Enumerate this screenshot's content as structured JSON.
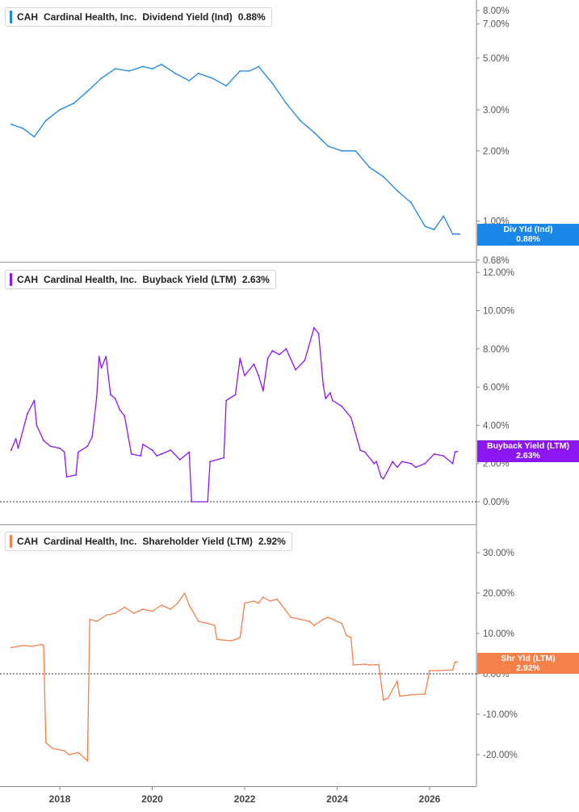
{
  "x_axis": {
    "ticks": [
      "2018",
      "2020",
      "2022",
      "2024",
      "2026"
    ]
  },
  "colors": {
    "dividend": "#1a86e8",
    "buyback": "#8d17f0",
    "shareholder": "#f5814a",
    "axis": "#555555",
    "grid_divider": "#9a9a9a"
  },
  "legends": [
    {
      "ticker": "CAH",
      "company": "Cardinal Health, Inc.",
      "metric": "Dividend Yield (Ind)",
      "value": "0.88%"
    },
    {
      "ticker": "CAH",
      "company": "Cardinal Health, Inc.",
      "metric": "Buyback Yield (LTM)",
      "value": "2.63%"
    },
    {
      "ticker": "CAH",
      "company": "Cardinal Health, Inc.",
      "metric": "Shareholder Yield (LTM)",
      "value": "2.92%"
    }
  ],
  "tags": [
    {
      "line1": "Div Yld (Ind)",
      "line2": "0.88%"
    },
    {
      "line1": "Buyback Yield (LTM)",
      "line2": "2.63%"
    },
    {
      "line1": "Shr Yld (LTM)",
      "line2": "2.92%"
    }
  ],
  "chart_data": [
    {
      "type": "line",
      "title": "CAH Cardinal Health, Inc. Dividend Yield (Ind) 0.88%",
      "y_scale": "log",
      "ylim": [
        0.62,
        9.2
      ],
      "y_ticks": [
        {
          "value": 8.0,
          "label": "8.00%"
        },
        {
          "value": 7.0,
          "label": "7.00%"
        },
        {
          "value": 5.0,
          "label": "5.00%"
        },
        {
          "value": 3.0,
          "label": "3.00%"
        },
        {
          "value": 2.0,
          "label": "2.00%"
        },
        {
          "value": 1.0,
          "label": "1.00%"
        },
        {
          "value": 0.88,
          "label": "0.88%"
        },
        {
          "value": 0.68,
          "label": "0.68%"
        }
      ],
      "series": [
        {
          "name": "Dividend Yield (Ind)",
          "x": [
            2016.95,
            2017.2,
            2017.45,
            2017.7,
            2018.0,
            2018.3,
            2018.6,
            2018.9,
            2019.2,
            2019.5,
            2019.8,
            2020.0,
            2020.2,
            2020.5,
            2020.8,
            2021.0,
            2021.3,
            2021.6,
            2021.9,
            2022.1,
            2022.3,
            2022.6,
            2022.9,
            2023.2,
            2023.5,
            2023.8,
            2024.1,
            2024.4,
            2024.7,
            2025.0,
            2025.3,
            2025.6,
            2025.9,
            2026.1,
            2026.3,
            2026.5,
            2026.65
          ],
          "y": [
            2.6,
            2.5,
            2.3,
            2.7,
            3.0,
            3.2,
            3.6,
            4.1,
            4.5,
            4.4,
            4.6,
            4.5,
            4.7,
            4.3,
            4.0,
            4.3,
            4.1,
            3.8,
            4.4,
            4.4,
            4.6,
            3.9,
            3.2,
            2.7,
            2.4,
            2.1,
            2.0,
            2.0,
            1.7,
            1.55,
            1.35,
            1.2,
            0.95,
            0.92,
            1.05,
            0.88,
            0.88
          ]
        }
      ]
    },
    {
      "type": "line",
      "title": "CAH Cardinal Health, Inc. Buyback Yield (LTM) 2.63%",
      "ylim": [
        -0.5,
        12.4
      ],
      "y_ticks": [
        {
          "value": 12,
          "label": "12.00%"
        },
        {
          "value": 10,
          "label": "10.00%"
        },
        {
          "value": 8,
          "label": "8.00%"
        },
        {
          "value": 6,
          "label": "6.00%"
        },
        {
          "value": 4,
          "label": "4.00%"
        },
        {
          "value": 2,
          "label": "2.00%"
        },
        {
          "value": 0,
          "label": "0.00%"
        }
      ],
      "series": [
        {
          "name": "Buyback Yield (LTM)",
          "x": [
            2016.95,
            2017.05,
            2017.1,
            2017.3,
            2017.45,
            2017.5,
            2017.65,
            2017.8,
            2018.0,
            2018.1,
            2018.15,
            2018.35,
            2018.4,
            2018.6,
            2018.7,
            2018.8,
            2018.85,
            2018.9,
            2019.0,
            2019.1,
            2019.2,
            2019.3,
            2019.4,
            2019.55,
            2019.75,
            2019.8,
            2020.0,
            2020.1,
            2020.2,
            2020.4,
            2020.6,
            2020.8,
            2020.85,
            2021.2,
            2021.25,
            2021.55,
            2021.6,
            2021.8,
            2021.9,
            2022.0,
            2022.2,
            2022.3,
            2022.4,
            2022.5,
            2022.6,
            2022.75,
            2022.9,
            2023.1,
            2023.3,
            2023.5,
            2023.6,
            2023.7,
            2023.75,
            2023.85,
            2023.9,
            2024.1,
            2024.3,
            2024.5,
            2024.6,
            2024.8,
            2024.85,
            2024.95,
            2025.0,
            2025.2,
            2025.3,
            2025.4,
            2025.6,
            2025.7,
            2025.9,
            2026.1,
            2026.3,
            2026.5,
            2026.55,
            2026.6
          ],
          "y": [
            2.7,
            3.3,
            2.8,
            4.6,
            5.3,
            4.0,
            3.2,
            2.9,
            2.8,
            2.6,
            1.3,
            1.4,
            2.6,
            2.9,
            3.4,
            5.5,
            7.6,
            7.0,
            7.6,
            5.6,
            5.4,
            4.8,
            4.5,
            2.5,
            2.4,
            3.0,
            2.7,
            2.4,
            2.5,
            2.7,
            2.2,
            2.6,
            0.0,
            0.0,
            2.1,
            2.3,
            5.3,
            5.6,
            7.5,
            6.6,
            7.2,
            6.6,
            5.8,
            7.5,
            7.9,
            7.7,
            8.0,
            6.9,
            7.4,
            9.1,
            8.8,
            6.1,
            5.4,
            5.7,
            5.3,
            5.0,
            4.4,
            2.7,
            2.6,
            2.0,
            2.1,
            1.3,
            1.2,
            2.1,
            1.8,
            2.1,
            2.0,
            1.8,
            2.0,
            2.5,
            2.4,
            2.0,
            2.6,
            2.63
          ]
        }
      ]
    },
    {
      "type": "line",
      "title": "CAH Cardinal Health, Inc. Shareholder Yield (LTM) 2.92%",
      "ylim": [
        -25,
        35
      ],
      "y_ticks": [
        {
          "value": 30,
          "label": "30.00%"
        },
        {
          "value": 20,
          "label": "20.00%"
        },
        {
          "value": 10,
          "label": "10.00%"
        },
        {
          "value": 0,
          "label": "0.00%"
        },
        {
          "value": -10,
          "label": "-10.00%"
        },
        {
          "value": -20,
          "label": "-20.00%"
        }
      ],
      "series": [
        {
          "name": "Shareholder Yield (LTM)",
          "x": [
            2016.95,
            2017.2,
            2017.4,
            2017.6,
            2017.65,
            2017.7,
            2017.85,
            2018.1,
            2018.2,
            2018.4,
            2018.6,
            2018.65,
            2018.8,
            2019.0,
            2019.2,
            2019.4,
            2019.6,
            2019.8,
            2020.0,
            2020.2,
            2020.4,
            2020.55,
            2020.7,
            2020.8,
            2021.0,
            2021.2,
            2021.35,
            2021.4,
            2021.7,
            2021.8,
            2021.9,
            2022.0,
            2022.2,
            2022.3,
            2022.4,
            2022.55,
            2022.7,
            2023.0,
            2023.2,
            2023.4,
            2023.5,
            2023.7,
            2023.8,
            2024.1,
            2024.2,
            2024.3,
            2024.35,
            2024.6,
            2024.7,
            2024.9,
            2025.0,
            2025.1,
            2025.3,
            2025.35,
            2025.6,
            2025.9,
            2026.0,
            2026.2,
            2026.5,
            2026.55,
            2026.6
          ],
          "y": [
            6.5,
            7.0,
            6.8,
            7.3,
            7.0,
            -17.0,
            -18.5,
            -19.0,
            -20.0,
            -19.5,
            -21.5,
            13.5,
            13.0,
            14.5,
            15.0,
            16.5,
            15.0,
            16.0,
            15.5,
            17.0,
            16.0,
            17.5,
            20.0,
            17.0,
            13.0,
            12.5,
            12.0,
            8.5,
            8.2,
            8.5,
            9.0,
            17.5,
            18.0,
            17.5,
            19.0,
            18.0,
            18.5,
            14.0,
            13.5,
            13.0,
            12.0,
            13.5,
            14.0,
            12.5,
            9.5,
            9.0,
            2.2,
            2.4,
            2.2,
            2.3,
            -6.5,
            -6.0,
            -1.8,
            -5.5,
            -5.2,
            -5.0,
            0.8,
            0.8,
            1.0,
            2.9,
            2.92
          ]
        }
      ]
    }
  ]
}
